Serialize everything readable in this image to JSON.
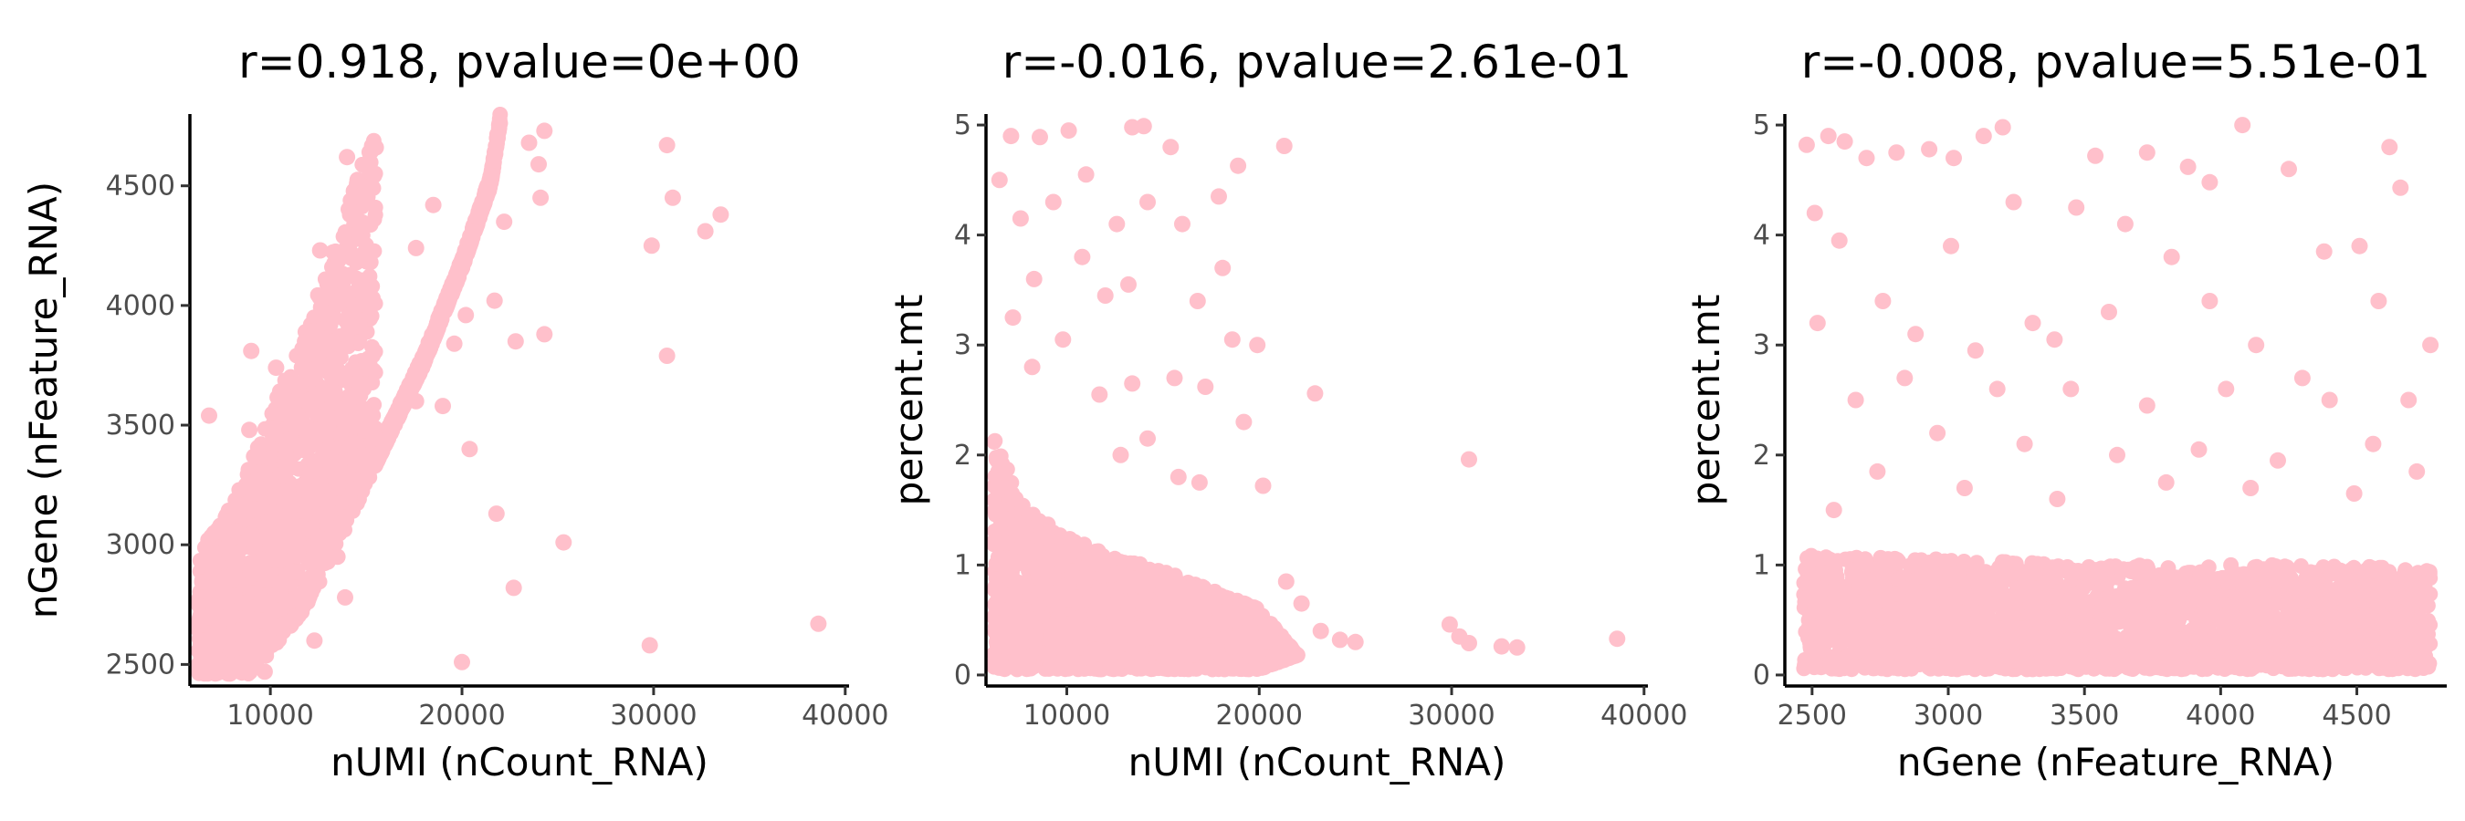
{
  "chart_data": [
    {
      "type": "scatter",
      "title": "r=0.918, pvalue=0e+00",
      "xlabel": "nUMI (nCount_RNA)",
      "ylabel": "nGene (nFeature_RNA)",
      "xlim": [
        5800,
        40200
      ],
      "ylim": [
        2410,
        4800
      ],
      "xticks": [
        10000,
        20000,
        30000,
        40000
      ],
      "yticks": [
        2500,
        3000,
        3500,
        4000,
        4500
      ],
      "grid": false,
      "legend": "none",
      "color": "#ffc0cb",
      "points": [
        [
          30700,
          4670
        ],
        [
          31000,
          4450
        ],
        [
          29900,
          4250
        ],
        [
          32700,
          4310
        ],
        [
          33500,
          4380
        ],
        [
          30700,
          3790
        ],
        [
          24300,
          3880
        ],
        [
          22800,
          3850
        ],
        [
          20400,
          3400
        ],
        [
          21800,
          3130
        ],
        [
          25300,
          3010
        ],
        [
          22700,
          2820
        ],
        [
          20000,
          2510
        ],
        [
          29800,
          2580
        ],
        [
          38600,
          2670
        ],
        [
          23500,
          4680
        ],
        [
          24000,
          4590
        ],
        [
          24300,
          4730
        ],
        [
          22200,
          4350
        ],
        [
          21400,
          4480
        ],
        [
          24100,
          4450
        ],
        [
          21700,
          4020
        ],
        [
          20200,
          3960
        ],
        [
          19600,
          3840
        ],
        [
          19000,
          3580
        ],
        [
          17600,
          3600
        ],
        [
          15100,
          3300
        ],
        [
          13500,
          2950
        ],
        [
          12200,
          2870
        ],
        [
          10900,
          2760
        ],
        [
          13900,
          2780
        ],
        [
          12300,
          2600
        ],
        [
          9700,
          2470
        ],
        [
          7600,
          2480
        ],
        [
          6800,
          3540
        ],
        [
          8900,
          3480
        ],
        [
          9000,
          3810
        ],
        [
          10300,
          3740
        ],
        [
          12600,
          4230
        ],
        [
          14000,
          4620
        ],
        [
          15500,
          4660
        ],
        [
          17600,
          4240
        ],
        [
          18500,
          4420
        ]
      ],
      "density_band": {
        "description": "dense cloud of cells along trend",
        "lower": [
          [
            6200,
            2460
          ],
          [
            9000,
            2460
          ],
          [
            12000,
            2750
          ],
          [
            15000,
            3250
          ],
          [
            18000,
            3750
          ],
          [
            20000,
            4150
          ],
          [
            21500,
            4500
          ],
          [
            22000,
            4760
          ]
        ],
        "upper": [
          [
            6200,
            2950
          ],
          [
            8500,
            3250
          ],
          [
            10500,
            3650
          ],
          [
            12500,
            4050
          ],
          [
            14200,
            4450
          ],
          [
            15500,
            4760
          ]
        ]
      }
    },
    {
      "type": "scatter",
      "title": "r=-0.016, pvalue=2.61e-01",
      "xlabel": "nUMI (nCount_RNA)",
      "ylabel": "percent.mt",
      "xlim": [
        5800,
        40200
      ],
      "ylim": [
        -0.1,
        5.1
      ],
      "xticks": [
        10000,
        20000,
        30000,
        40000
      ],
      "yticks": [
        0,
        1,
        2,
        3,
        4,
        5
      ],
      "grid": false,
      "legend": "none",
      "color": "#ffc0cb",
      "points": [
        [
          21300,
          4.81
        ],
        [
          13400,
          4.98
        ],
        [
          14000,
          4.99
        ],
        [
          15400,
          4.8
        ],
        [
          18900,
          4.63
        ],
        [
          10100,
          4.95
        ],
        [
          8600,
          4.89
        ],
        [
          7100,
          4.9
        ],
        [
          6500,
          4.5
        ],
        [
          17900,
          4.35
        ],
        [
          14200,
          4.3
        ],
        [
          12600,
          4.1
        ],
        [
          18100,
          3.7
        ],
        [
          16800,
          3.4
        ],
        [
          19900,
          3.0
        ],
        [
          18600,
          3.05
        ],
        [
          22900,
          2.56
        ],
        [
          17200,
          2.62
        ],
        [
          15600,
          2.7
        ],
        [
          13400,
          2.65
        ],
        [
          19200,
          2.3
        ],
        [
          30900,
          1.96
        ],
        [
          20200,
          1.72
        ],
        [
          16900,
          1.75
        ],
        [
          21400,
          0.85
        ],
        [
          22200,
          0.65
        ],
        [
          23200,
          0.4
        ],
        [
          24200,
          0.32
        ],
        [
          25000,
          0.3
        ],
        [
          29900,
          0.46
        ],
        [
          30400,
          0.35
        ],
        [
          30900,
          0.29
        ],
        [
          32600,
          0.26
        ],
        [
          33400,
          0.25
        ],
        [
          38600,
          0.33
        ],
        [
          11000,
          4.55
        ],
        [
          9300,
          4.3
        ],
        [
          7600,
          4.15
        ],
        [
          8300,
          3.6
        ],
        [
          10800,
          3.8
        ],
        [
          12000,
          3.45
        ],
        [
          7200,
          3.25
        ],
        [
          9800,
          3.05
        ],
        [
          11700,
          2.55
        ],
        [
          8200,
          2.8
        ],
        [
          14200,
          2.15
        ],
        [
          12800,
          2.0
        ],
        [
          15800,
          1.8
        ],
        [
          13200,
          3.55
        ],
        [
          16000,
          4.1
        ]
      ],
      "density_band": {
        "description": "dense cloud of cells near zero",
        "lower": [
          [
            6200,
            0.05
          ],
          [
            20000,
            0.05
          ],
          [
            22000,
            0.18
          ]
        ],
        "upper": [
          [
            6200,
            2.2
          ],
          [
            7500,
            1.6
          ],
          [
            9500,
            1.3
          ],
          [
            12000,
            1.1
          ],
          [
            15000,
            0.95
          ],
          [
            18000,
            0.75
          ],
          [
            20000,
            0.6
          ],
          [
            22000,
            0.18
          ]
        ]
      }
    },
    {
      "type": "scatter",
      "title": "r=-0.008, pvalue=5.51e-01",
      "xlabel": "nGene (nFeature_RNA)",
      "ylabel": "percent.mt",
      "xlim": [
        2400,
        4830
      ],
      "ylim": [
        -0.1,
        5.1
      ],
      "xticks": [
        2500,
        3000,
        3500,
        4000,
        4500
      ],
      "yticks": [
        0,
        1,
        2,
        3,
        4,
        5
      ],
      "grid": false,
      "legend": "none",
      "color": "#ffc0cb",
      "points": [
        [
          2480,
          4.82
        ],
        [
          2560,
          4.9
        ],
        [
          2620,
          4.85
        ],
        [
          2700,
          4.7
        ],
        [
          2810,
          4.75
        ],
        [
          2930,
          4.78
        ],
        [
          3020,
          4.7
        ],
        [
          3200,
          4.98
        ],
        [
          3130,
          4.9
        ],
        [
          3540,
          4.72
        ],
        [
          3730,
          4.75
        ],
        [
          3880,
          4.62
        ],
        [
          4080,
          5.0
        ],
        [
          4620,
          4.8
        ],
        [
          4660,
          4.43
        ],
        [
          3960,
          4.48
        ],
        [
          4250,
          4.6
        ],
        [
          4380,
          3.85
        ],
        [
          4510,
          3.9
        ],
        [
          3240,
          4.3
        ],
        [
          3470,
          4.25
        ],
        [
          3650,
          4.1
        ],
        [
          3820,
          3.8
        ],
        [
          3310,
          3.2
        ],
        [
          2510,
          4.2
        ],
        [
          2600,
          3.95
        ],
        [
          2760,
          3.4
        ],
        [
          2880,
          3.1
        ],
        [
          3010,
          3.9
        ],
        [
          3100,
          2.95
        ],
        [
          3390,
          3.05
        ],
        [
          3590,
          3.3
        ],
        [
          3960,
          3.4
        ],
        [
          4130,
          3.0
        ],
        [
          4300,
          2.7
        ],
        [
          4580,
          3.4
        ],
        [
          4770,
          3.0
        ],
        [
          4690,
          2.5
        ],
        [
          2520,
          3.2
        ],
        [
          2660,
          2.5
        ],
        [
          2840,
          2.7
        ],
        [
          3180,
          2.6
        ],
        [
          3450,
          2.6
        ],
        [
          3730,
          2.45
        ],
        [
          4020,
          2.6
        ],
        [
          4400,
          2.5
        ],
        [
          2960,
          2.2
        ],
        [
          3280,
          2.1
        ],
        [
          3620,
          2.0
        ],
        [
          3920,
          2.05
        ],
        [
          4210,
          1.95
        ],
        [
          4560,
          2.1
        ],
        [
          2740,
          1.85
        ],
        [
          3060,
          1.7
        ],
        [
          3400,
          1.6
        ],
        [
          3800,
          1.75
        ],
        [
          4110,
          1.7
        ],
        [
          4490,
          1.65
        ],
        [
          4720,
          1.85
        ],
        [
          2580,
          1.5
        ]
      ],
      "density_band": {
        "description": "dense cloud of cells near zero across full range",
        "lower": [
          [
            2470,
            0.05
          ],
          [
            4770,
            0.05
          ]
        ],
        "upper": [
          [
            2470,
            1.1
          ],
          [
            3000,
            1.05
          ],
          [
            3500,
            1.0
          ],
          [
            4000,
            1.0
          ],
          [
            4500,
            1.0
          ],
          [
            4770,
            0.95
          ]
        ]
      }
    }
  ]
}
